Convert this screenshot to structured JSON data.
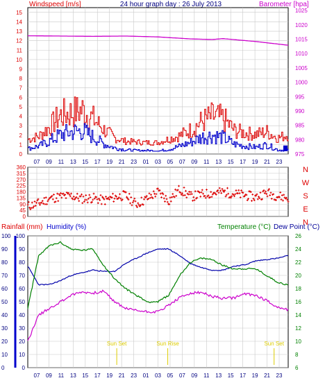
{
  "header": {
    "left_label": "Windspeed [m/s]",
    "title": "24 hour graph day : 26 July 2013",
    "right_label": "Barometer [hpa]"
  },
  "colors": {
    "wind": "#dd0000",
    "gust": "#0000cc",
    "barometer": "#cc00cc",
    "direction": "#dd0000",
    "rain": "#0000cc",
    "humidity": "#cc00cc",
    "temperature": "#008000",
    "dewpoint": "#000099",
    "sun": "#ddcc00",
    "grid": "#c8c8c8"
  },
  "chart_data": [
    {
      "type": "line",
      "name": "wind-barometer",
      "x_labels": [
        "07",
        "09",
        "11",
        "13",
        "15",
        "17",
        "19",
        "21",
        "23",
        "01",
        "03",
        "05",
        "07",
        "09",
        "11",
        "13",
        "15",
        "17",
        "19",
        "21",
        "23"
      ],
      "x_range": [
        0,
        24
      ],
      "y_left": {
        "label": "Windspeed [m/s]",
        "ticks": [
          0,
          1,
          2,
          3,
          4,
          5,
          6,
          7,
          8,
          9,
          10,
          11,
          12,
          13,
          14,
          15
        ],
        "range": [
          0,
          15.5
        ]
      },
      "y_right": {
        "label": "Barometer [hpa]",
        "ticks": [
          975,
          980,
          985,
          990,
          995,
          1000,
          1005,
          1010,
          1015,
          1020,
          1025
        ],
        "range": [
          975,
          1026
        ]
      },
      "barometer": {
        "x": [
          0,
          3,
          6,
          9,
          12,
          15,
          17,
          18,
          21,
          24
        ],
        "y": [
          1016.2,
          1016.1,
          1016.0,
          1016.1,
          1015.8,
          1015.1,
          1014.9,
          1015.2,
          1014.2,
          1012.9
        ]
      },
      "wind_peak": {
        "x": [
          0,
          1,
          2,
          3,
          4,
          5,
          6,
          7,
          8,
          9,
          10,
          11,
          12,
          13,
          14,
          15,
          16,
          17,
          18,
          19,
          20,
          21,
          22,
          23,
          24
        ],
        "y": [
          2.0,
          2.5,
          4.0,
          5.8,
          6.2,
          6.6,
          5.2,
          3.5,
          2.2,
          1.7,
          1.6,
          1.5,
          1.5,
          2.1,
          2.6,
          3.5,
          4.8,
          5.6,
          5.2,
          3.4,
          3.0,
          2.8,
          3.2,
          2.2,
          2.8
        ]
      },
      "gust_peak": {
        "x": [
          0,
          1,
          2,
          3,
          4,
          5,
          6,
          7,
          8,
          9,
          10,
          11,
          12,
          13,
          14,
          15,
          16,
          17,
          18,
          19,
          20,
          21,
          22,
          23,
          24
        ],
        "y": [
          0.8,
          1.2,
          2.0,
          3.0,
          3.4,
          3.6,
          2.6,
          1.5,
          0.9,
          0.6,
          0.5,
          0.5,
          0.4,
          0.7,
          1.2,
          1.8,
          2.6,
          2.9,
          2.5,
          1.5,
          1.2,
          1.0,
          1.4,
          0.6,
          0.5
        ]
      }
    },
    {
      "type": "scatter",
      "name": "wind-direction",
      "y_left": {
        "ticks": [
          0,
          45,
          90,
          135,
          180,
          225,
          270,
          315,
          360
        ],
        "range": [
          0,
          360
        ]
      },
      "y_right": {
        "labels": [
          "N",
          "W",
          "S",
          "E",
          "N"
        ]
      },
      "direction": {
        "x": [
          0,
          1,
          2,
          3,
          4,
          5,
          6,
          7,
          8,
          9,
          10,
          11,
          12,
          13,
          14,
          15,
          16,
          17,
          18,
          19,
          20,
          21,
          22,
          23,
          24
        ],
        "y": [
          75,
          95,
          130,
          145,
          150,
          130,
          135,
          115,
          140,
          155,
          90,
          130,
          180,
          115,
          200,
          145,
          160,
          170,
          180,
          165,
          155,
          140,
          175,
          150,
          135
        ]
      }
    },
    {
      "type": "line",
      "name": "temp-humidity",
      "x_labels": [
        "07",
        "09",
        "11",
        "13",
        "15",
        "17",
        "19",
        "21",
        "23",
        "01",
        "03",
        "05",
        "07",
        "09",
        "11",
        "13",
        "15",
        "17",
        "19",
        "21",
        "23"
      ],
      "legend_left": [
        "Rainfall (mm)",
        "Humidity (%)"
      ],
      "legend_right": [
        "Temperature (°C)",
        "Dew Point (°C)"
      ],
      "y_left": {
        "ticks": [
          0,
          10,
          20,
          30,
          40,
          50,
          60,
          70,
          80,
          90,
          100
        ],
        "range": [
          0,
          100
        ]
      },
      "y_right": {
        "ticks": [
          6,
          8,
          10,
          12,
          14,
          16,
          18,
          20,
          22,
          24,
          26
        ],
        "range": [
          6,
          26
        ]
      },
      "humidity": {
        "x": [
          0,
          1,
          2,
          3,
          4,
          5,
          6,
          7,
          8,
          9,
          10,
          11,
          12,
          13,
          14,
          15,
          16,
          17,
          18,
          19,
          20,
          21,
          22,
          23,
          24
        ],
        "y": [
          77,
          63,
          63,
          66,
          70,
          72,
          74,
          73,
          73,
          79,
          83,
          87,
          90,
          90,
          85,
          79,
          76,
          74,
          74,
          77,
          78,
          81,
          82,
          83,
          85
        ]
      },
      "temperature": {
        "x": [
          0,
          1,
          2,
          3,
          4,
          5,
          6,
          7,
          8,
          9,
          10,
          11,
          12,
          13,
          14,
          15,
          16,
          17,
          18,
          19,
          20,
          21,
          22,
          23,
          24
        ],
        "y": [
          15,
          23,
          24.5,
          25,
          24,
          23.8,
          24,
          21.5,
          19.5,
          18,
          17,
          16,
          16,
          17,
          20,
          22,
          22.6,
          22.4,
          21.5,
          21,
          21,
          21,
          20,
          19,
          18.5
        ]
      },
      "dewpoint": {
        "x": [
          0,
          1,
          2,
          3,
          4,
          5,
          6,
          7,
          8,
          9,
          10,
          11,
          12,
          13,
          14,
          15,
          16,
          17,
          18,
          19,
          20,
          21,
          22,
          23,
          24
        ],
        "y": [
          10,
          14,
          15,
          16,
          17,
          17.5,
          17.3,
          17.6,
          16,
          15,
          14.7,
          14.5,
          14.5,
          15.5,
          16.6,
          17.3,
          17.4,
          16.8,
          16.5,
          16.6,
          17.2,
          17,
          16.2,
          15.2,
          14.8
        ]
      },
      "annotations": [
        {
          "text": "Sun Set",
          "x": 8.2
        },
        {
          "text": "Sun Rise",
          "x": 12.9
        },
        {
          "text": "Sun Set",
          "x": 22.7
        }
      ]
    }
  ]
}
